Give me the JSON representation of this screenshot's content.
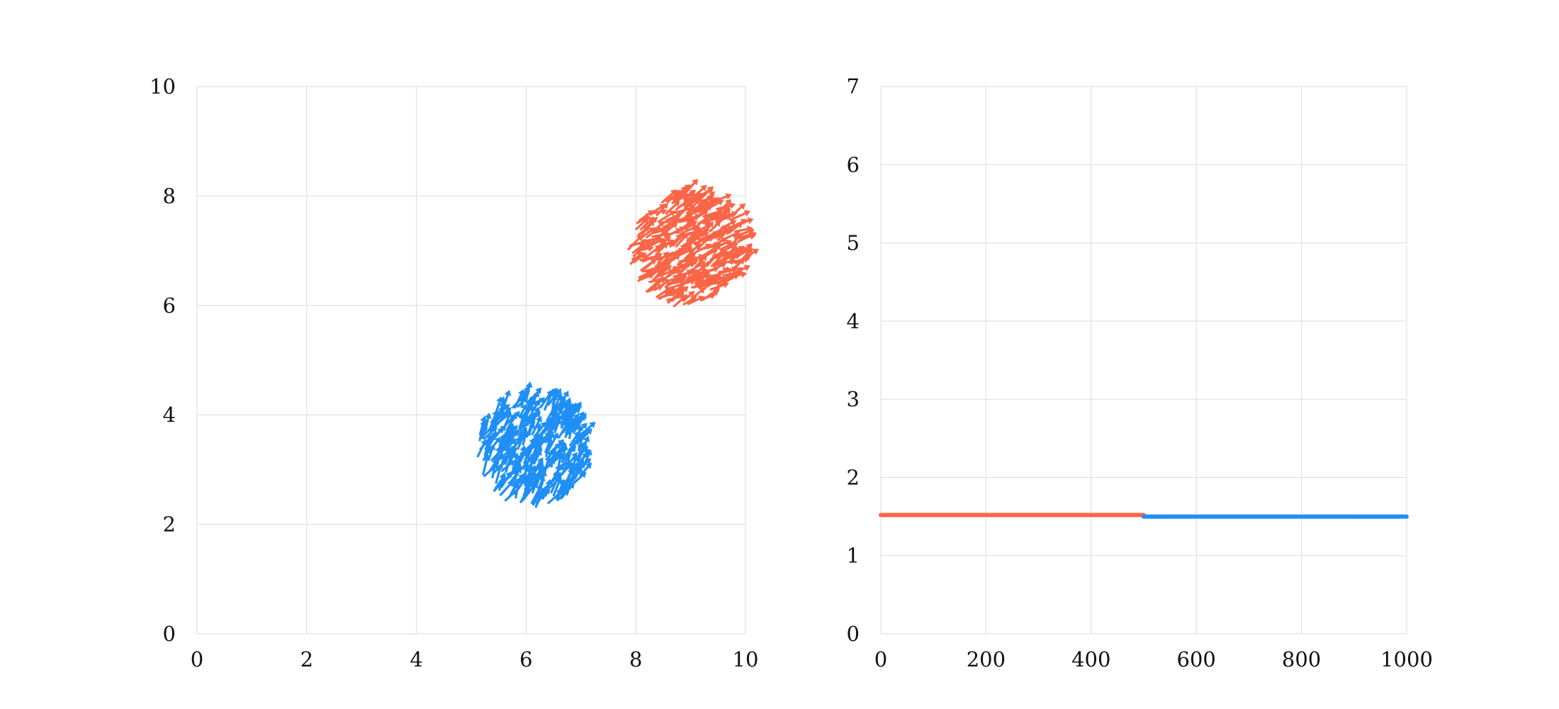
{
  "colors": {
    "red": "#fa6547",
    "blue": "#1f8ff5",
    "grid": "#e2e2e2"
  },
  "chart_data": [
    {
      "type": "scatter",
      "title": "",
      "xlabel": "",
      "ylabel": "",
      "xlim": [
        0,
        10
      ],
      "ylim": [
        0,
        10
      ],
      "xticks": [
        "0",
        "2",
        "4",
        "6",
        "8",
        "10"
      ],
      "yticks": [
        "0",
        "2",
        "4",
        "6",
        "8",
        "10"
      ],
      "grid": true,
      "legend": "none",
      "marker": "arrow",
      "series": [
        {
          "color": "#fa6547",
          "center": [
            8.9,
            7.0
          ],
          "radius": 1.05,
          "count": 300,
          "direction_deg": 30
        },
        {
          "color": "#1f8ff5",
          "center": [
            6.1,
            3.3
          ],
          "radius": 1.0,
          "count": 300,
          "direction_deg": 60
        }
      ]
    },
    {
      "type": "line",
      "title": "",
      "xlabel": "",
      "ylabel": "",
      "xlim": [
        0,
        1000
      ],
      "ylim": [
        0,
        7
      ],
      "xticks": [
        "0",
        "200",
        "400",
        "600",
        "800",
        "1000"
      ],
      "yticks": [
        "0",
        "1",
        "2",
        "3",
        "4",
        "5",
        "6",
        "7"
      ],
      "grid": true,
      "legend": "none",
      "series": [
        {
          "color": "#fa6547",
          "x": [
            0,
            500
          ],
          "y": [
            1.52,
            1.52
          ]
        },
        {
          "color": "#1f8ff5",
          "x": [
            500,
            1000
          ],
          "y": [
            1.5,
            1.5
          ]
        }
      ]
    }
  ]
}
